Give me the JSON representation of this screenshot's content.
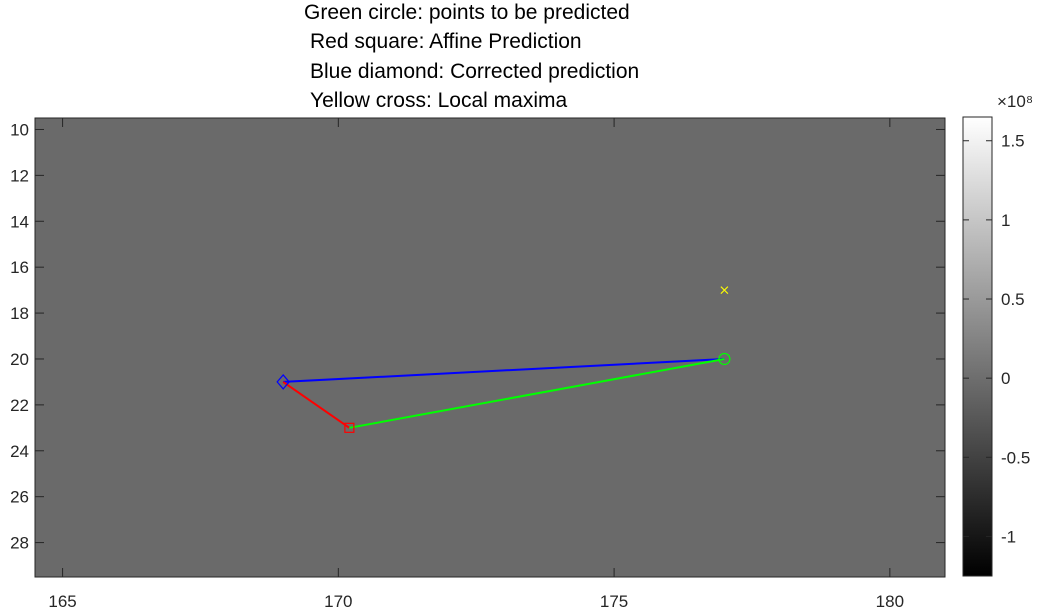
{
  "title_lines": [
    "Green circle: points to be predicted",
    "Red square: Affine Prediction",
    "Blue diamond: Corrected prediction",
    "Yellow cross: Local maxima"
  ],
  "colors": {
    "background_field": "#6a6a6a",
    "green": "#00ff00",
    "red": "#ff0000",
    "blue": "#0000ff",
    "yellow": "#ffff00",
    "axis": "#262626"
  },
  "chart_data": {
    "type": "scatter",
    "title": "",
    "xlabel": "",
    "ylabel": "",
    "xlim": [
      164.5,
      181
    ],
    "ylim": [
      9.5,
      29.5
    ],
    "y_reversed": true,
    "x_ticks": [
      165,
      170,
      175,
      180
    ],
    "y_ticks": [
      10,
      12,
      14,
      16,
      18,
      20,
      22,
      24,
      26,
      28
    ],
    "grid": false,
    "points": {
      "point_to_predict": {
        "x": 177,
        "y": 20,
        "marker": "circle",
        "color": "green"
      },
      "affine_prediction": {
        "x": 170.2,
        "y": 23,
        "marker": "square",
        "color": "red"
      },
      "corrected_prediction": {
        "x": 169,
        "y": 21,
        "marker": "diamond",
        "color": "blue"
      },
      "local_maxima": [
        {
          "x": 177,
          "y": 17,
          "marker": "cross",
          "color": "yellow"
        }
      ]
    },
    "lines": [
      {
        "from": [
          169,
          21
        ],
        "to": [
          177,
          20
        ],
        "color": "blue"
      },
      {
        "from": [
          169,
          21
        ],
        "to": [
          170.2,
          23
        ],
        "color": "red"
      },
      {
        "from": [
          170.2,
          23
        ],
        "to": [
          177,
          20
        ],
        "color": "green"
      }
    ],
    "colorbar": {
      "exponent_label": "×10⁸",
      "tick_labels": [
        "1.5",
        "1",
        "0.5",
        "0",
        "-0.5",
        "-1"
      ],
      "tick_values": [
        1.5,
        1,
        0.5,
        0,
        -0.5,
        -1
      ],
      "range": [
        -1.25,
        1.65
      ]
    }
  }
}
